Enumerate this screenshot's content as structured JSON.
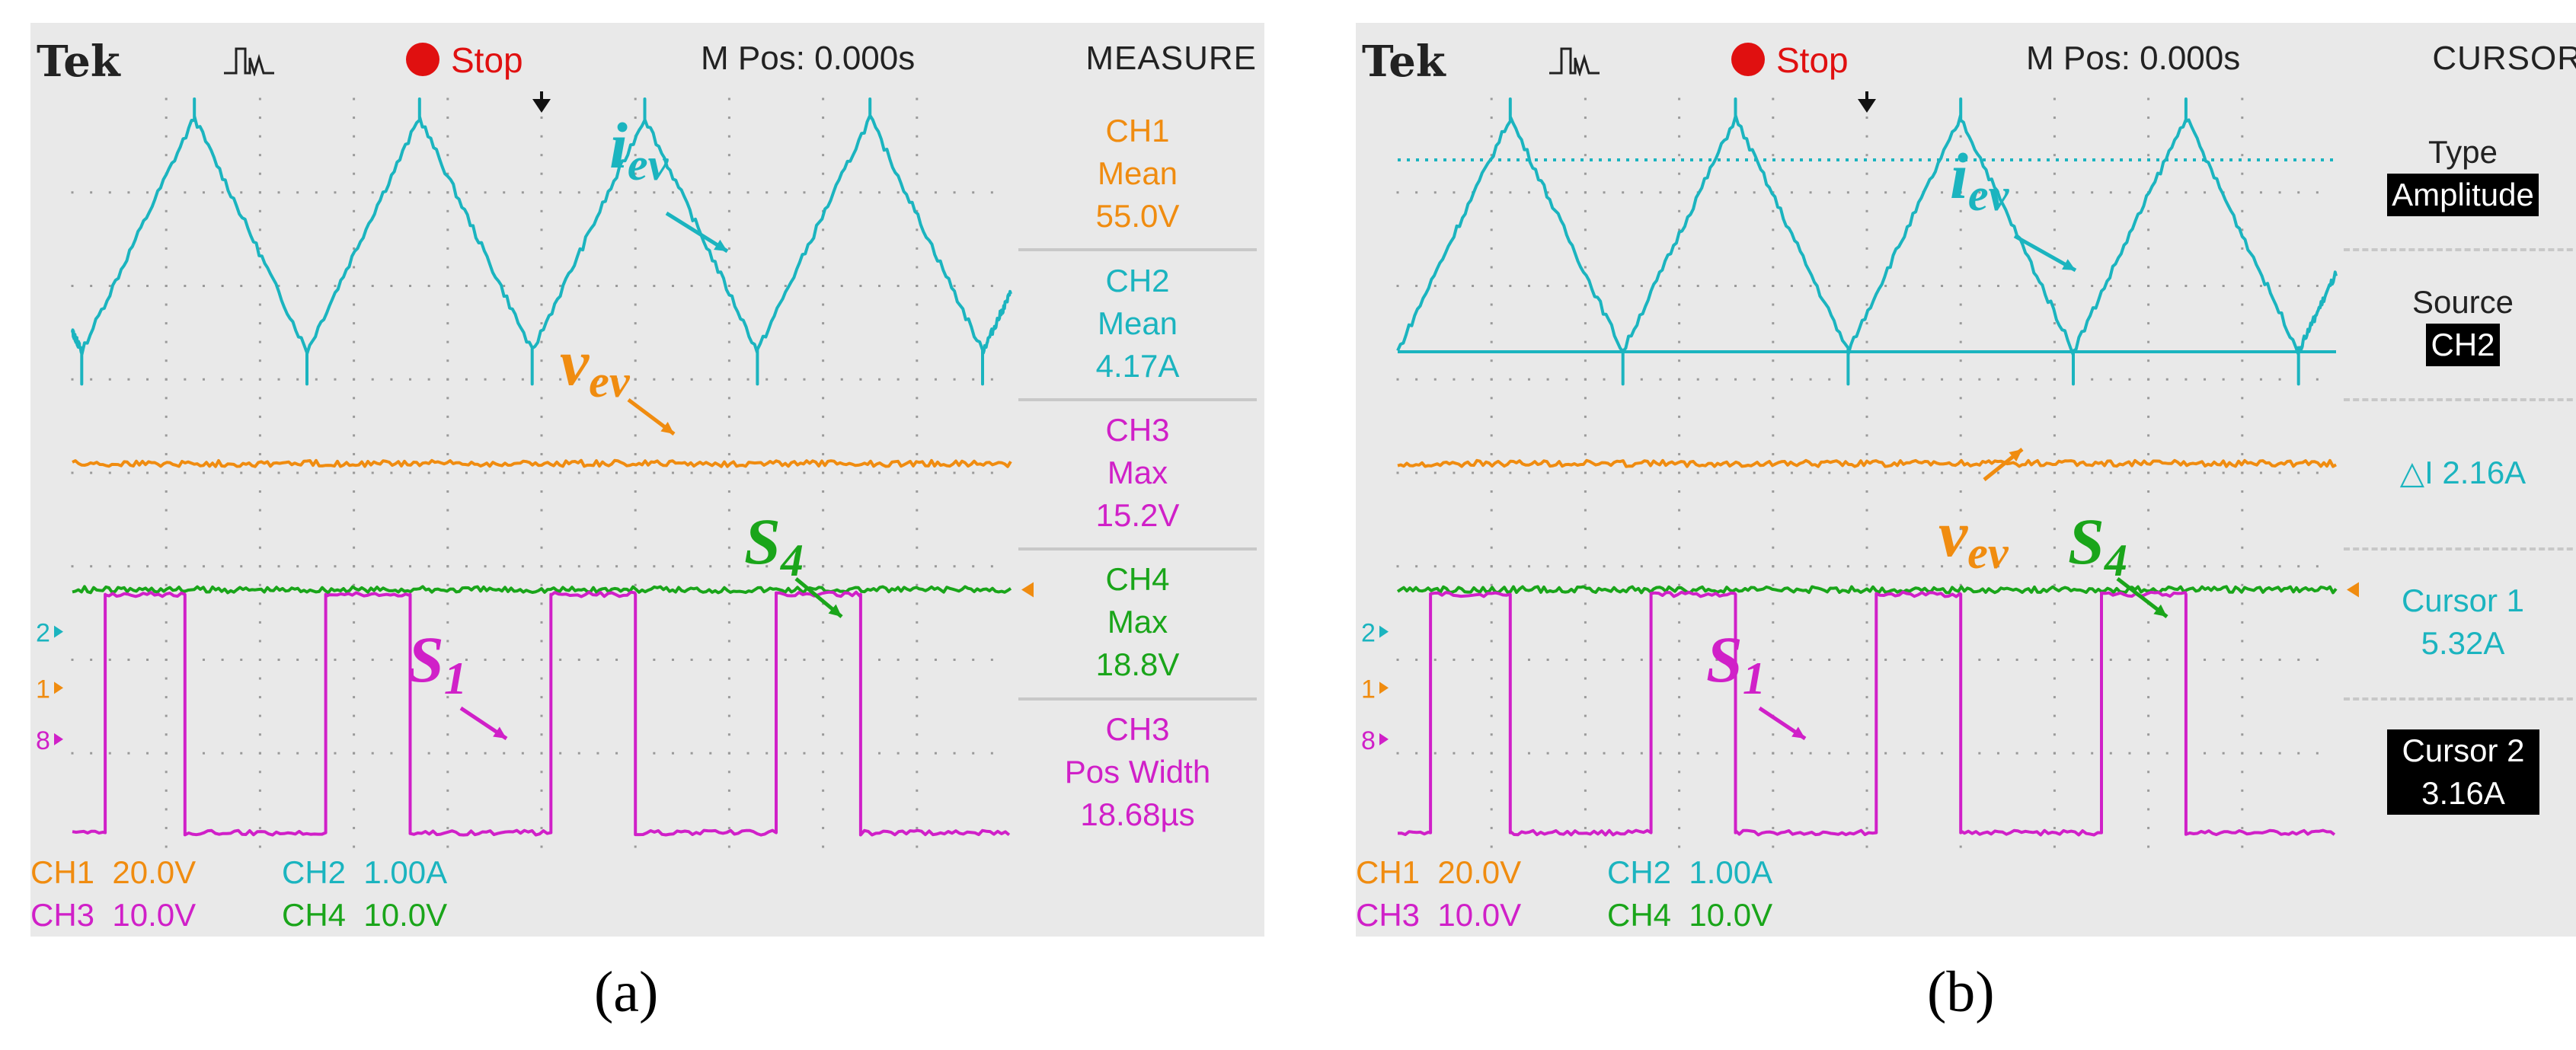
{
  "panels": [
    {
      "id": "a",
      "caption": "(a)",
      "header": {
        "brand": "Tek",
        "status": "Stop",
        "mpos": "M Pos: 0.000s",
        "side_title": "MEASURE"
      },
      "side_items": [
        {
          "lines": [
            "CH1",
            "Mean",
            "55.0V"
          ],
          "color": "#f08c10"
        },
        {
          "lines": [
            "CH2",
            "Mean",
            "4.17A"
          ],
          "color": "#1bb4bf"
        },
        {
          "lines": [
            "CH3",
            "Max",
            "15.2V"
          ],
          "color": "#d020c8"
        },
        {
          "lines": [
            "CH4",
            "Max",
            "18.8V"
          ],
          "color": "#1aa51a"
        },
        {
          "lines": [
            "CH3",
            "Pos Width",
            "18.68µs"
          ],
          "color": "#d020c8"
        }
      ],
      "channel_scales": [
        {
          "ch": "CH1",
          "scale": "20.0V",
          "color": "#f08c10"
        },
        {
          "ch": "CH2",
          "scale": "1.00A",
          "color": "#1bb4bf"
        },
        {
          "ch": "CH3",
          "scale": "10.0V",
          "color": "#d020c8"
        },
        {
          "ch": "CH4",
          "scale": "10.0V",
          "color": "#1aa51a"
        }
      ],
      "labels": {
        "i": "i",
        "i_sub": "ev",
        "v": "v",
        "v_sub": "ev",
        "s4": "S",
        "s4_sub": "4",
        "s1": "S",
        "s1_sub": "1"
      }
    },
    {
      "id": "b",
      "caption": "(b)",
      "header": {
        "brand": "Tek",
        "status": "Stop",
        "mpos": "M Pos: 0.000s",
        "side_title": "CURSOR"
      },
      "side_items": [
        {
          "lines": [
            "Type",
            "Amplitude"
          ],
          "color": "#222222",
          "invert_last": true
        },
        {
          "lines": [
            "Source",
            "CH2"
          ],
          "color": "#222222",
          "invert_last": true
        },
        {
          "lines": [
            "△I 2.16A"
          ],
          "color": "#1bb4bf"
        },
        {
          "lines": [
            "Cursor 1",
            "5.32A"
          ],
          "color": "#1bb4bf"
        },
        {
          "lines": [
            "Cursor 2",
            "3.16A"
          ],
          "color": "#ffffff",
          "invert_all": true
        }
      ],
      "channel_scales": [
        {
          "ch": "CH1",
          "scale": "20.0V",
          "color": "#f08c10"
        },
        {
          "ch": "CH2",
          "scale": "1.00A",
          "color": "#1bb4bf"
        },
        {
          "ch": "CH3",
          "scale": "10.0V",
          "color": "#d020c8"
        },
        {
          "ch": "CH4",
          "scale": "10.0V",
          "color": "#1aa51a"
        }
      ],
      "labels": {
        "i": "i",
        "i_sub": "ev",
        "v": "v",
        "v_sub": "ev",
        "s4": "S",
        "s4_sub": "4",
        "s1": "S",
        "s1_sub": "1"
      }
    }
  ],
  "chart_data": [
    {
      "type": "line",
      "panel": "a",
      "x_divisions": 10,
      "y_divisions": 8,
      "series": [
        {
          "name": "iev",
          "channel": "CH2",
          "color": "#1bb4bf",
          "shape": "triangle",
          "peaks_div": [
            1.3,
            3.7,
            6.1,
            8.5
          ],
          "valleys_div": [
            0.1,
            2.5,
            4.9,
            7.3,
            9.7
          ],
          "high_level_div": 7.8,
          "low_level_div": 5.3
        },
        {
          "name": "vev",
          "channel": "CH1",
          "color": "#f08c10",
          "shape": "flat",
          "level_div": 4.1
        },
        {
          "name": "S4",
          "channel": "CH4",
          "color": "#1aa51a",
          "shape": "flat",
          "level_div": 2.75
        },
        {
          "name": "S1",
          "channel": "CH3",
          "color": "#d020c8",
          "shape": "pulse",
          "rising_div": [
            0.35,
            2.7,
            5.1,
            7.5
          ],
          "falling_div": [
            1.2,
            3.6,
            6.0,
            8.4
          ],
          "high_level_div": 2.7,
          "low_level_div": 0.15
        }
      ]
    },
    {
      "type": "line",
      "panel": "b",
      "x_divisions": 10,
      "y_divisions": 8,
      "cursors": [
        {
          "name": "Cursor 1",
          "value": "5.32A",
          "style": "dotted"
        },
        {
          "name": "Cursor 2",
          "value": "3.16A",
          "style": "solid"
        }
      ],
      "series": [
        {
          "name": "iev",
          "channel": "CH2",
          "color": "#1bb4bf",
          "shape": "triangle",
          "peaks_div": [
            1.2,
            3.6,
            6.0,
            8.4
          ],
          "valleys_div": [
            0.0,
            2.4,
            4.8,
            7.2,
            9.6
          ],
          "high_level_div": 7.8,
          "low_level_div": 5.3
        },
        {
          "name": "vev",
          "channel": "CH1",
          "color": "#f08c10",
          "shape": "flat",
          "level_div": 4.1
        },
        {
          "name": "S4",
          "channel": "CH4",
          "color": "#1aa51a",
          "shape": "flat",
          "level_div": 2.75
        },
        {
          "name": "S1",
          "channel": "CH3",
          "color": "#d020c8",
          "shape": "pulse",
          "rising_div": [
            0.35,
            2.7,
            5.1,
            7.5
          ],
          "falling_div": [
            1.2,
            3.6,
            6.0,
            8.4
          ],
          "high_level_div": 2.7,
          "low_level_div": 0.15
        }
      ]
    }
  ]
}
